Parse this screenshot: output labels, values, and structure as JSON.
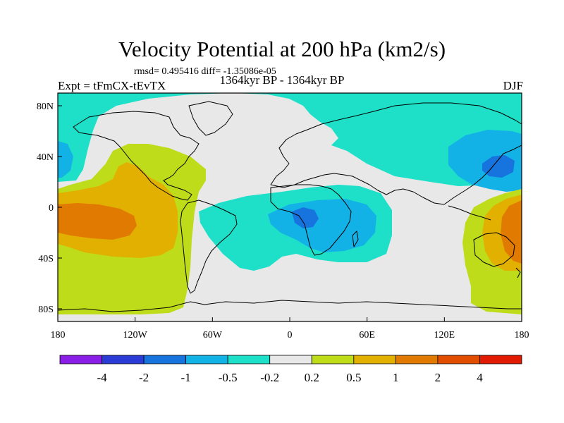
{
  "chart_data": {
    "type": "heatmap",
    "title": "Velocity Potential at 200 hPa (km2/s)",
    "stats_text": "rmsd= 0.495416 diff= -1.35086e-05",
    "left_label": "Expt = tFmCX-tEvTX",
    "center_label": "1364kyr BP - 1364kyr BP",
    "right_label": "DJF",
    "xlim": [
      -180,
      180
    ],
    "ylim": [
      -90,
      90
    ],
    "x_ticks": [
      {
        "value": -180,
        "label": "180"
      },
      {
        "value": -120,
        "label": "120W"
      },
      {
        "value": -60,
        "label": "60W"
      },
      {
        "value": 0,
        "label": "0"
      },
      {
        "value": 60,
        "label": "60E"
      },
      {
        "value": 120,
        "label": "120E"
      },
      {
        "value": 180,
        "label": "180"
      }
    ],
    "y_ticks": [
      {
        "value": 80,
        "label": "80N"
      },
      {
        "value": 40,
        "label": "40N"
      },
      {
        "value": 0,
        "label": "0"
      },
      {
        "value": -40,
        "label": "40S"
      },
      {
        "value": -80,
        "label": "80S"
      }
    ],
    "colorbar": {
      "colors": [
        "#8a1de6",
        "#2b3bd6",
        "#1773dd",
        "#13b2e6",
        "#1ee0c8",
        "#e8e8e8",
        "#bedc1a",
        "#e2b000",
        "#e07a00",
        "#e24e00",
        "#e01b00"
      ],
      "labels": [
        "-4",
        "-2",
        "-1",
        "-0.5",
        "-0.2",
        "0.2",
        "0.5",
        "1",
        "2",
        "4"
      ]
    },
    "regions": [
      {
        "label": "negative anomaly north and west",
        "level": -0.2
      },
      {
        "label": "positive anomaly eastern Pacific",
        "level": 1
      },
      {
        "label": "negative anomaly South Atlantic / Africa",
        "level": -1
      },
      {
        "label": "positive anomaly western Pacific / Australia",
        "level": 1
      },
      {
        "label": "negative anomaly North Pacific / East Asia",
        "level": -1
      }
    ]
  }
}
